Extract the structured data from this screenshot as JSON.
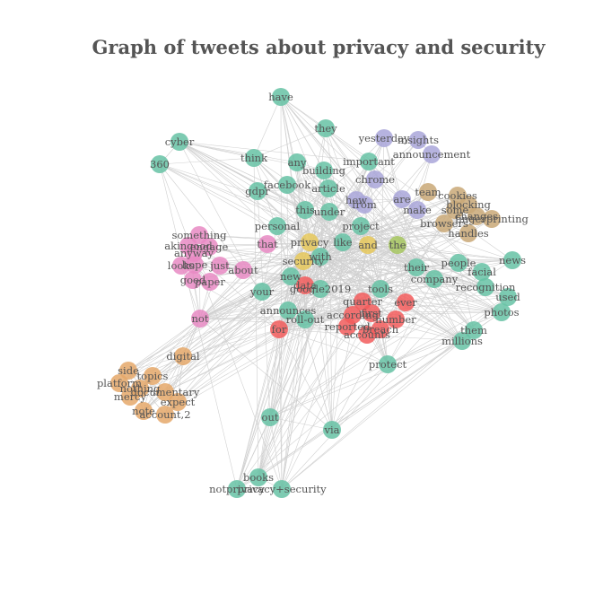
{
  "title": "Graph of tweets about privacy and security",
  "colors": {
    "teal": "#66c2a5",
    "pink": "#e78ac3",
    "orange": "#e5a86a",
    "red": "#f25c5c",
    "purple": "#a9a6d9",
    "tan": "#c9a877",
    "yellow": "#e6c85a",
    "green": "#a6c55f",
    "edge": "#d0d0d0",
    "label": "#555555"
  },
  "nodes": [
    {
      "label": "have",
      "group": "teal"
    },
    {
      "label": "they",
      "group": "teal"
    },
    {
      "label": "cyber",
      "group": "teal"
    },
    {
      "label": "360",
      "group": "teal"
    },
    {
      "label": "think",
      "group": "teal"
    },
    {
      "label": "any",
      "group": "teal"
    },
    {
      "label": "building",
      "group": "teal"
    },
    {
      "label": "important",
      "group": "teal"
    },
    {
      "label": "facebook",
      "group": "teal"
    },
    {
      "label": "gdpr",
      "group": "teal"
    },
    {
      "label": "article",
      "group": "teal"
    },
    {
      "label": "chrome",
      "group": "purple"
    },
    {
      "label": "how",
      "group": "purple"
    },
    {
      "label": "from",
      "group": "purple"
    },
    {
      "label": "this",
      "group": "teal"
    },
    {
      "label": "under",
      "group": "teal"
    },
    {
      "label": "personal",
      "group": "teal"
    },
    {
      "label": "project",
      "group": "teal"
    },
    {
      "label": "yesterday",
      "group": "purple"
    },
    {
      "label": "insights",
      "group": "purple"
    },
    {
      "label": "announcement",
      "group": "purple"
    },
    {
      "label": "are",
      "group": "purple"
    },
    {
      "label": "make",
      "group": "purple"
    },
    {
      "label": "team",
      "group": "tan"
    },
    {
      "label": "cookies",
      "group": "tan"
    },
    {
      "label": "blocking",
      "group": "tan"
    },
    {
      "label": "some",
      "group": "tan"
    },
    {
      "label": "changes",
      "group": "tan"
    },
    {
      "label": "fingerprinting",
      "group": "tan"
    },
    {
      "label": "browsers",
      "group": "tan"
    },
    {
      "label": "handles",
      "group": "tan"
    },
    {
      "label": "something",
      "group": "pink"
    },
    {
      "label": "akingood",
      "group": "pink"
    },
    {
      "label": "engage",
      "group": "pink"
    },
    {
      "label": "anyway",
      "group": "pink"
    },
    {
      "label": "hope",
      "group": "pink"
    },
    {
      "label": "just",
      "group": "pink"
    },
    {
      "label": "looks",
      "group": "pink"
    },
    {
      "label": "good",
      "group": "pink"
    },
    {
      "label": "paper",
      "group": "pink"
    },
    {
      "label": "that",
      "group": "pink"
    },
    {
      "label": "about",
      "group": "pink"
    },
    {
      "label": "privacy",
      "group": "yellow"
    },
    {
      "label": "like",
      "group": "teal"
    },
    {
      "label": "and",
      "group": "yellow"
    },
    {
      "label": "the",
      "group": "green"
    },
    {
      "label": "security",
      "group": "yellow"
    },
    {
      "label": "with",
      "group": "teal"
    },
    {
      "label": "new",
      "group": "teal"
    },
    {
      "label": "data",
      "group": "red"
    },
    {
      "label": "google2019",
      "group": "teal"
    },
    {
      "label": "tools",
      "group": "teal"
    },
    {
      "label": "their",
      "group": "teal"
    },
    {
      "label": "company",
      "group": "teal"
    },
    {
      "label": "people",
      "group": "teal"
    },
    {
      "label": "news",
      "group": "teal"
    },
    {
      "label": "facial",
      "group": "teal"
    },
    {
      "label": "recognition",
      "group": "teal"
    },
    {
      "label": "used",
      "group": "teal"
    },
    {
      "label": "photos",
      "group": "teal"
    },
    {
      "label": "your",
      "group": "teal"
    },
    {
      "label": "announces",
      "group": "teal"
    },
    {
      "label": "roll-out",
      "group": "teal"
    },
    {
      "label": "quarter",
      "group": "red"
    },
    {
      "label": "ever",
      "group": "red"
    },
    {
      "label": "according",
      "group": "red"
    },
    {
      "label": "first",
      "group": "red"
    },
    {
      "label": "number",
      "group": "red"
    },
    {
      "label": "reported",
      "group": "red"
    },
    {
      "label": "breach",
      "group": "red"
    },
    {
      "label": "accounts",
      "group": "red"
    },
    {
      "label": "for",
      "group": "red"
    },
    {
      "label": "not",
      "group": "pink"
    },
    {
      "label": "them",
      "group": "teal"
    },
    {
      "label": "millions",
      "group": "teal"
    },
    {
      "label": "protect",
      "group": "teal"
    },
    {
      "label": "digital",
      "group": "orange"
    },
    {
      "label": "side",
      "group": "orange"
    },
    {
      "label": "topics",
      "group": "orange"
    },
    {
      "label": "platform",
      "group": "orange"
    },
    {
      "label": "nothing",
      "group": "orange"
    },
    {
      "label": "mercy",
      "group": "orange"
    },
    {
      "label": "documentary",
      "group": "orange"
    },
    {
      "label": "expect",
      "group": "orange"
    },
    {
      "label": "note",
      "group": "orange"
    },
    {
      "label": "account,2",
      "group": "orange"
    },
    {
      "label": "out",
      "group": "teal"
    },
    {
      "label": "via",
      "group": "teal"
    },
    {
      "label": "books",
      "group": "teal"
    },
    {
      "label": "notprivacy",
      "group": "teal"
    },
    {
      "label": "privacy+security",
      "group": "teal"
    }
  ]
}
